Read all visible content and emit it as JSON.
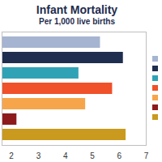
{
  "chart_data": {
    "type": "bar",
    "title": "Infant Mortality",
    "subtitle": "Per 1,000 live births",
    "orientation": "horizontal",
    "categories": [
      null,
      null,
      null,
      null,
      null,
      null,
      null
    ],
    "values": [
      5.3,
      6.15,
      4.5,
      5.75,
      4.75,
      2.2,
      6.25
    ],
    "colors": [
      "#A5B4D0",
      "#1F2D4E",
      "#2FA3B5",
      "#F0502A",
      "#F7A54A",
      "#8E1B1B",
      "#C99A1E"
    ],
    "xlim": [
      1.65,
      7
    ],
    "xticks": [
      2,
      3,
      4,
      5,
      6,
      7
    ],
    "grid": false,
    "legend": "right",
    "tick_labels": "x"
  }
}
